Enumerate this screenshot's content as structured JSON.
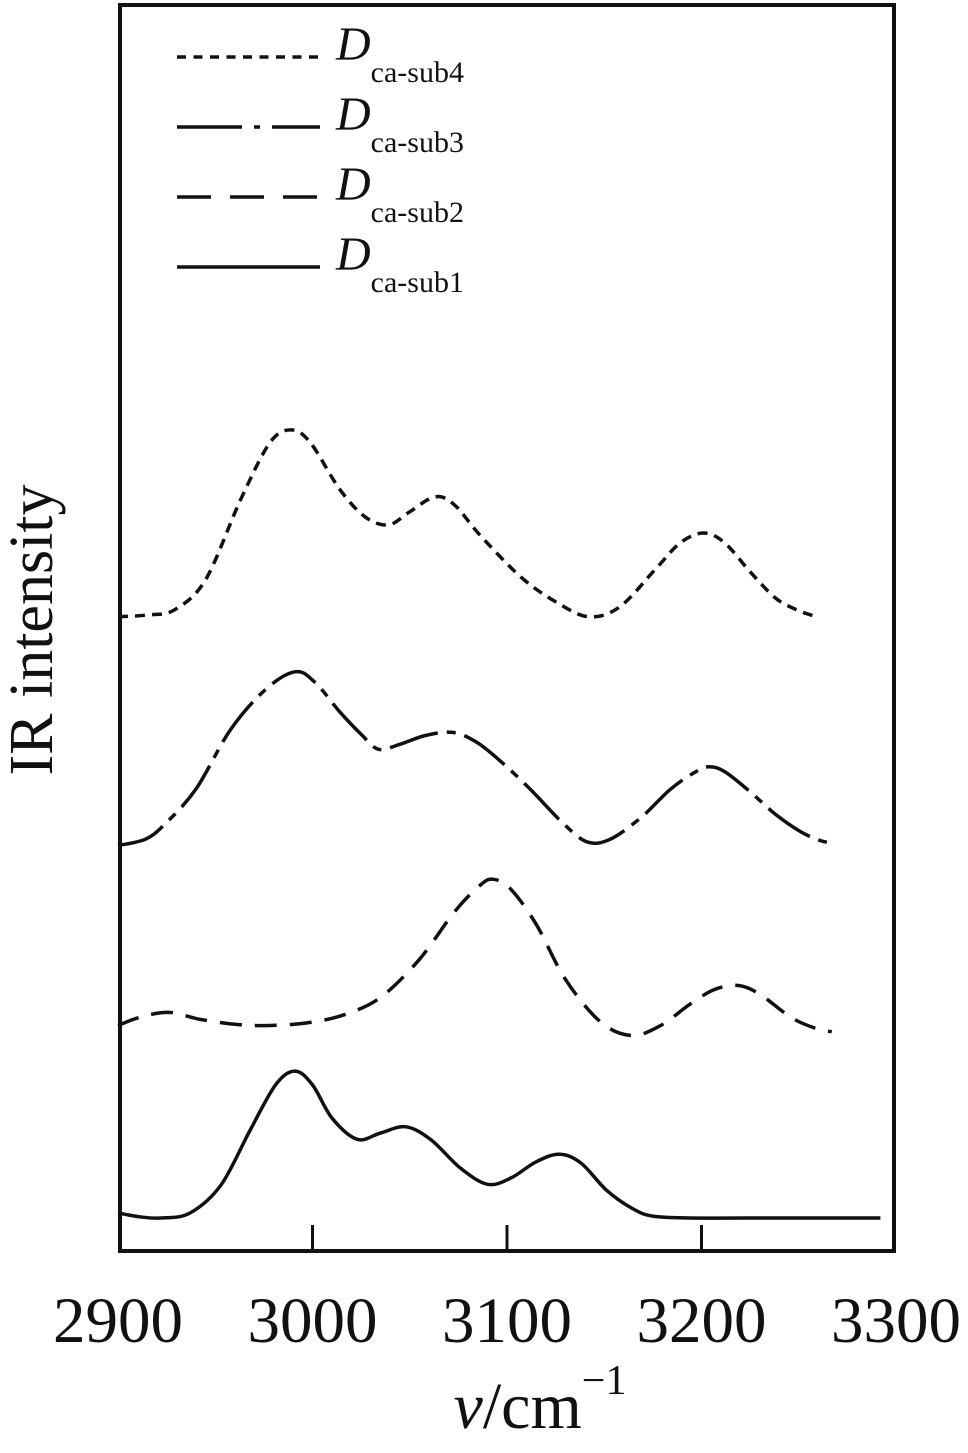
{
  "chart_data": {
    "type": "line",
    "title": "",
    "ylabel": "IR intensity",
    "xlabel": "ν/cm⁻¹",
    "xlabel_parts": {
      "symbol": "ν",
      "unit": "/cm",
      "exponent": "−1"
    },
    "x_axis": {
      "min": 2900,
      "max": 3300,
      "ticks": [
        2900,
        3000,
        3100,
        3200,
        3300
      ],
      "tick_labels": [
        "2900",
        "3000",
        "3100",
        "3200",
        "3300"
      ]
    },
    "y_axis": {
      "min": 0,
      "max": 100,
      "scale_visible": false,
      "units": "arbitrary"
    },
    "grid": false,
    "color": "#111111",
    "legend": {
      "position": "top-left",
      "items": [
        {
          "main": "D",
          "sub": "ca-sub4",
          "line_style": "dotted"
        },
        {
          "main": "D",
          "sub": "ca-sub3",
          "line_style": "dash-dot"
        },
        {
          "main": "D",
          "sub": "ca-sub2",
          "line_style": "dashed"
        },
        {
          "main": "D",
          "sub": "ca-sub1",
          "line_style": "solid"
        }
      ]
    },
    "series": [
      {
        "name": "D_ca-sub1",
        "display": {
          "main": "D",
          "sub": "ca-sub1"
        },
        "line_style": "solid",
        "baseline_offset": 2.8,
        "peaks_cm1": [
          2990,
          3048,
          3127
        ],
        "points": [
          [
            2900,
            0.4
          ],
          [
            2911,
            0.1
          ],
          [
            2922,
            0.0
          ],
          [
            2937,
            0.4
          ],
          [
            2953,
            2.65
          ],
          [
            2968,
            7.05
          ],
          [
            2981,
            10.65
          ],
          [
            2991,
            11.75
          ],
          [
            3000,
            10.65
          ],
          [
            3010,
            8.0
          ],
          [
            3023,
            6.3
          ],
          [
            3035,
            6.8
          ],
          [
            3048,
            7.3
          ],
          [
            3061,
            6.25
          ],
          [
            3076,
            4.0
          ],
          [
            3090,
            2.7
          ],
          [
            3102,
            3.2
          ],
          [
            3115,
            4.5
          ],
          [
            3127,
            5.1
          ],
          [
            3138,
            4.4
          ],
          [
            3151,
            2.25
          ],
          [
            3164,
            0.8
          ],
          [
            3175,
            0.15
          ],
          [
            3195,
            0.0
          ],
          [
            3221,
            0.0
          ],
          [
            3252,
            0.0
          ],
          [
            3273,
            0.0
          ],
          [
            3292,
            0.0
          ]
        ]
      },
      {
        "name": "D_ca-sub2",
        "display": {
          "main": "D",
          "sub": "ca-sub2"
        },
        "line_style": "dashed",
        "baseline_offset": 18.2,
        "peaks_cm1": [
          2926,
          3092,
          3219
        ],
        "points": [
          [
            2900,
            0.0
          ],
          [
            2911,
            0.65
          ],
          [
            2926,
            1.05
          ],
          [
            2942,
            0.5
          ],
          [
            2960,
            0.1
          ],
          [
            2978,
            0.0
          ],
          [
            2999,
            0.25
          ],
          [
            3017,
            0.9
          ],
          [
            3035,
            2.25
          ],
          [
            3055,
            5.3
          ],
          [
            3073,
            9.1
          ],
          [
            3086,
            11.2
          ],
          [
            3093,
            11.7
          ],
          [
            3102,
            10.9
          ],
          [
            3115,
            8.1
          ],
          [
            3130,
            3.7
          ],
          [
            3148,
            0.3
          ],
          [
            3164,
            -0.8
          ],
          [
            3179,
            0.0
          ],
          [
            3194,
            1.7
          ],
          [
            3207,
            2.9
          ],
          [
            3219,
            3.2
          ],
          [
            3230,
            2.5
          ],
          [
            3246,
            0.65
          ],
          [
            3259,
            -0.25
          ],
          [
            3267,
            -0.5
          ]
        ]
      },
      {
        "name": "D_ca-sub3",
        "display": {
          "main": "D",
          "sub": "ca-sub3"
        },
        "line_style": "dash-dot",
        "baseline_offset": 32.6,
        "peaks_cm1": [
          2991,
          3070,
          3203
        ],
        "points": [
          [
            2900,
            0.0
          ],
          [
            2914,
            0.5
          ],
          [
            2924,
            1.7
          ],
          [
            2940,
            4.5
          ],
          [
            2958,
            9.3
          ],
          [
            2976,
            12.5
          ],
          [
            2991,
            13.9
          ],
          [
            3001,
            13.1
          ],
          [
            3014,
            10.7
          ],
          [
            3025,
            8.9
          ],
          [
            3034,
            7.7
          ],
          [
            3045,
            8.1
          ],
          [
            3058,
            8.8
          ],
          [
            3072,
            9.05
          ],
          [
            3084,
            8.3
          ],
          [
            3097,
            6.7
          ],
          [
            3112,
            4.5
          ],
          [
            3128,
            1.9
          ],
          [
            3141,
            0.3
          ],
          [
            3153,
            0.5
          ],
          [
            3169,
            2.25
          ],
          [
            3184,
            4.5
          ],
          [
            3197,
            5.9
          ],
          [
            3204,
            6.3
          ],
          [
            3212,
            5.9
          ],
          [
            3225,
            4.3
          ],
          [
            3238,
            2.5
          ],
          [
            3251,
            1.1
          ],
          [
            3261,
            0.4
          ],
          [
            3269,
            0.15
          ]
        ]
      },
      {
        "name": "D_ca-sub4",
        "display": {
          "main": "D",
          "sub": "ca-sub4"
        },
        "line_style": "dotted",
        "baseline_offset": 50.9,
        "peaks_cm1": [
          2989,
          3063,
          3201
        ],
        "points": [
          [
            2900,
            0.0
          ],
          [
            2916,
            0.15
          ],
          [
            2929,
            0.55
          ],
          [
            2945,
            2.95
          ],
          [
            2963,
            9.35
          ],
          [
            2978,
            13.9
          ],
          [
            2989,
            14.95
          ],
          [
            2999,
            13.9
          ],
          [
            3014,
            10.2
          ],
          [
            3027,
            8.0
          ],
          [
            3039,
            7.35
          ],
          [
            3050,
            8.4
          ],
          [
            3063,
            9.6
          ],
          [
            3073,
            8.95
          ],
          [
            3086,
            6.55
          ],
          [
            3107,
            3.2
          ],
          [
            3125,
            1.2
          ],
          [
            3142,
            0.0
          ],
          [
            3158,
            0.8
          ],
          [
            3176,
            3.75
          ],
          [
            3189,
            5.9
          ],
          [
            3201,
            6.7
          ],
          [
            3212,
            5.9
          ],
          [
            3225,
            3.6
          ],
          [
            3238,
            1.5
          ],
          [
            3249,
            0.55
          ],
          [
            3257,
            0.1
          ]
        ]
      }
    ]
  }
}
